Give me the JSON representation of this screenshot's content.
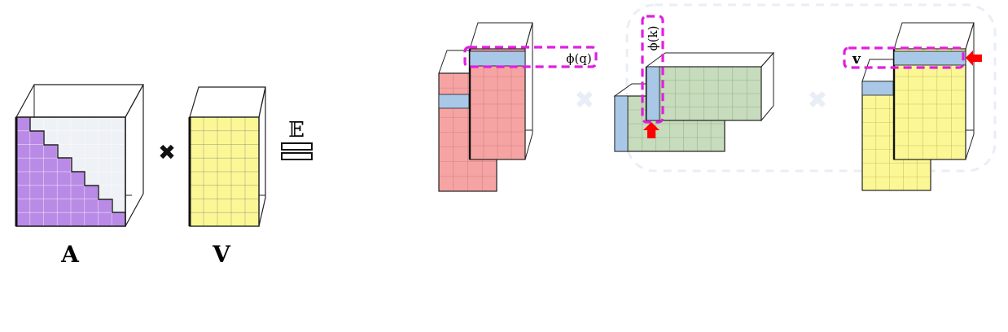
{
  "labels": {
    "a": "A",
    "v": "V",
    "expectation": "𝔼",
    "phi_q": "ϕ(q)",
    "phi_k": "ϕ(k)",
    "v_small": "v"
  },
  "symbols": {
    "times": "✖",
    "equals": "="
  },
  "colors": {
    "purple": "#b98be6",
    "light_gray": "#eef1f5",
    "yellow": "#fbf794",
    "red": "#f5a3a3",
    "green": "#c6dcbc",
    "blue": "#a9c7e6",
    "highlight": "#e01ee0",
    "arrow": "#ff0000",
    "faint_box": "#e9eef6"
  }
}
